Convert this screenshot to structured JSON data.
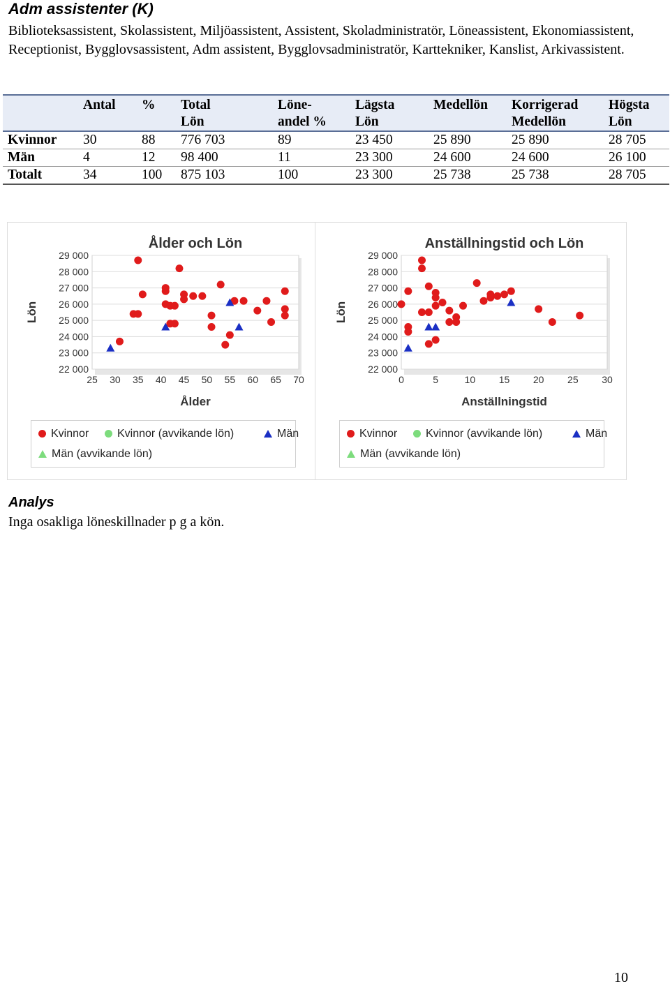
{
  "heading": "Adm assistenter (K)",
  "description": "Biblioteksassistent, Skolassistent, Miljöassistent, Assistent, Skoladministratör, Löneassistent, Ekonomiassistent, Receptionist, Bygglovsassistent, Adm assistent, Bygglovsadministratör, Karttekniker, Kanslist, Arkivassistent.",
  "table": {
    "headers": [
      [
        "",
        ""
      ],
      [
        "Antal",
        ""
      ],
      [
        "%",
        ""
      ],
      [
        "Total",
        "Lön"
      ],
      [
        "Löne-",
        "andel %"
      ],
      [
        "Lägsta",
        "Lön"
      ],
      [
        "Medellön",
        ""
      ],
      [
        "Korrigerad",
        "Medellön"
      ],
      [
        "Högsta",
        "Lön"
      ]
    ],
    "rows": [
      [
        "Kvinnor",
        "30",
        "88",
        "776 703",
        "89",
        "23 450",
        "25 890",
        "25 890",
        "28 705"
      ],
      [
        "Män",
        "4",
        "12",
        "98 400",
        "11",
        "23 300",
        "24 600",
        "24 600",
        "26 100"
      ],
      [
        "Totalt",
        "34",
        "100",
        "875 103",
        "100",
        "23 300",
        "25 738",
        "25 738",
        "28 705"
      ]
    ]
  },
  "colors": {
    "kvinnor": "#e01b1b",
    "kvinnor_avv": "#7ddc7d",
    "man": "#1a2fc4",
    "man_avv": "#7ddc7d",
    "header_bg": "#e7ecf6"
  },
  "chart_data": [
    {
      "type": "scatter",
      "title": "Ålder och Lön",
      "xlabel": "Ålder",
      "ylabel": "Lön",
      "xlim": [
        25,
        70
      ],
      "ylim": [
        22000,
        29000
      ],
      "xticks": [
        "25",
        "30",
        "35",
        "40",
        "45",
        "50",
        "55",
        "60",
        "65",
        "70"
      ],
      "yticks": [
        "22 000",
        "23 000",
        "24 000",
        "25 000",
        "26 000",
        "27 000",
        "28 000",
        "29 000"
      ],
      "grid": true,
      "legend_position": "bottom",
      "legend": [
        "Kvinnor",
        "Kvinnor (avvikande lön)",
        "Män",
        "Män (avvikande lön)"
      ],
      "series": [
        {
          "name": "Kvinnor",
          "marker": "circle",
          "points": [
            [
              31,
              23700
            ],
            [
              34,
              25400
            ],
            [
              35,
              25400
            ],
            [
              35,
              28700
            ],
            [
              36,
              26600
            ],
            [
              41,
              27000
            ],
            [
              41,
              26800
            ],
            [
              41,
              26000
            ],
            [
              42,
              25900
            ],
            [
              42,
              24800
            ],
            [
              43,
              24800
            ],
            [
              43,
              25900
            ],
            [
              44,
              28200
            ],
            [
              45,
              26600
            ],
            [
              45,
              26300
            ],
            [
              47,
              26500
            ],
            [
              49,
              26500
            ],
            [
              51,
              25300
            ],
            [
              51,
              24600
            ],
            [
              53,
              27200
            ],
            [
              54,
              23500
            ],
            [
              55,
              24100
            ],
            [
              56,
              26200
            ],
            [
              58,
              26200
            ],
            [
              61,
              25600
            ],
            [
              63,
              26200
            ],
            [
              64,
              24900
            ],
            [
              67,
              26800
            ],
            [
              67,
              25700
            ],
            [
              67,
              25300
            ]
          ]
        },
        {
          "name": "Kvinnor (avvikande lön)",
          "marker": "circle",
          "points": []
        },
        {
          "name": "Män",
          "marker": "triangle",
          "points": [
            [
              29,
              23300
            ],
            [
              41,
              24600
            ],
            [
              55,
              26100
            ],
            [
              57,
              24600
            ]
          ]
        },
        {
          "name": "Män (avvikande lön)",
          "marker": "triangle",
          "points": []
        }
      ]
    },
    {
      "type": "scatter",
      "title": "Anställningstid och Lön",
      "xlabel": "Anställningstid",
      "ylabel": "Lön",
      "xlim": [
        0,
        30
      ],
      "ylim": [
        22000,
        29000
      ],
      "xticks": [
        "0",
        "5",
        "10",
        "15",
        "20",
        "25",
        "30"
      ],
      "yticks": [
        "22 000",
        "23 000",
        "24 000",
        "25 000",
        "26 000",
        "27 000",
        "28 000",
        "29 000"
      ],
      "grid": true,
      "legend_position": "bottom",
      "legend": [
        "Kvinnor",
        "Kvinnor (avvikande lön)",
        "Män",
        "Män (avvikande lön)"
      ],
      "series": [
        {
          "name": "Kvinnor",
          "marker": "circle",
          "points": [
            [
              0,
              26000
            ],
            [
              1,
              26800
            ],
            [
              1,
              24600
            ],
            [
              1,
              24300
            ],
            [
              3,
              28700
            ],
            [
              3,
              28200
            ],
            [
              3,
              25500
            ],
            [
              4,
              27100
            ],
            [
              4,
              25500
            ],
            [
              4,
              23550
            ],
            [
              5,
              26700
            ],
            [
              5,
              26400
            ],
            [
              5,
              25900
            ],
            [
              5,
              23800
            ],
            [
              6,
              26100
            ],
            [
              7,
              25600
            ],
            [
              7,
              24900
            ],
            [
              8,
              25200
            ],
            [
              8,
              24900
            ],
            [
              9,
              25900
            ],
            [
              11,
              27300
            ],
            [
              12,
              26200
            ],
            [
              13,
              26600
            ],
            [
              13,
              26400
            ],
            [
              14,
              26500
            ],
            [
              15,
              26600
            ],
            [
              16,
              26800
            ],
            [
              20,
              25700
            ],
            [
              22,
              24900
            ],
            [
              26,
              25300
            ]
          ]
        },
        {
          "name": "Kvinnor (avvikande lön)",
          "marker": "circle",
          "points": []
        },
        {
          "name": "Män",
          "marker": "triangle",
          "points": [
            [
              1,
              23300
            ],
            [
              4,
              24600
            ],
            [
              5,
              24600
            ],
            [
              16,
              26100
            ]
          ]
        },
        {
          "name": "Män (avvikande lön)",
          "marker": "triangle",
          "points": []
        }
      ]
    }
  ],
  "analys": {
    "heading": "Analys",
    "text": "Inga osakliga löneskillnader p g a kön."
  },
  "page_number": "10"
}
